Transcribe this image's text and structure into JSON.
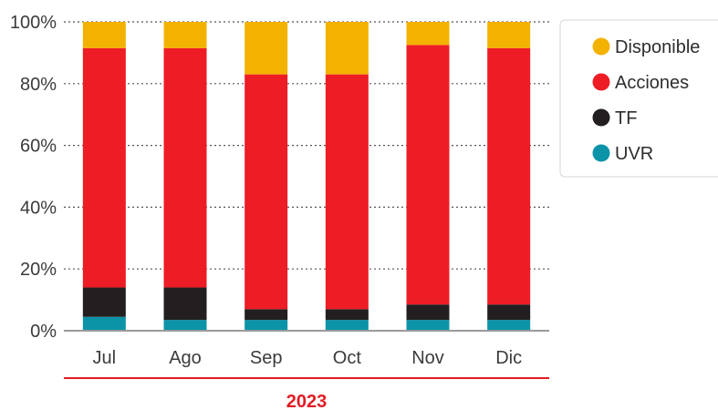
{
  "chart_data": {
    "type": "bar",
    "stacked": true,
    "categories": [
      "Jul",
      "Ago",
      "Sep",
      "Oct",
      "Nov",
      "Dic"
    ],
    "series": [
      {
        "name": "UVR",
        "color": "#0b93a8",
        "values": [
          4.5,
          3.5,
          3.5,
          3.5,
          3.5,
          3.5
        ]
      },
      {
        "name": "TF",
        "color": "#231f20",
        "values": [
          9.5,
          10.5,
          3.5,
          3.5,
          5.0,
          5.0
        ]
      },
      {
        "name": "Acciones",
        "color": "#ee1c25",
        "values": [
          77.5,
          77.5,
          76.0,
          76.0,
          84.0,
          83.0
        ]
      },
      {
        "name": "Disponible",
        "color": "#f3b200",
        "values": [
          8.5,
          8.5,
          17.0,
          17.0,
          7.5,
          8.5
        ]
      }
    ],
    "yticks": [
      "0%",
      "20%",
      "40%",
      "60%",
      "80%",
      "100%"
    ],
    "ylim": [
      0,
      100
    ],
    "grid": "horizontal dotted",
    "legend_position": "top-right",
    "legend_order": [
      "Disponible",
      "Acciones",
      "TF",
      "UVR"
    ],
    "group_label": "2023",
    "group_label_color": "#e31b23"
  }
}
